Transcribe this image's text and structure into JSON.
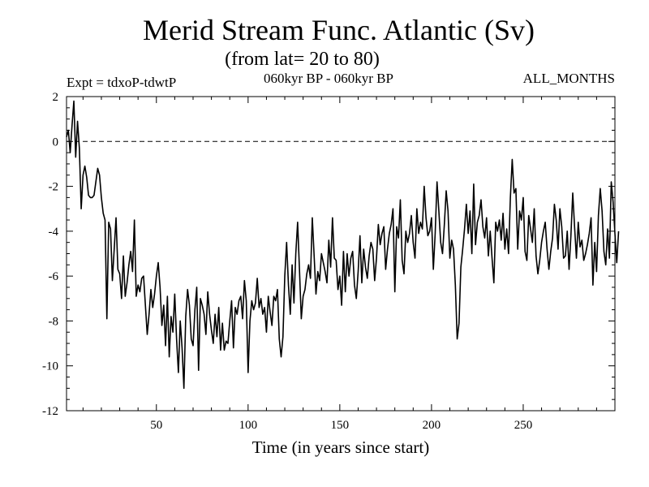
{
  "chart_data": {
    "type": "line",
    "title": "Merid Stream Func. Atlantic (Sv)",
    "subtitle": "(from lat= 20 to 80)",
    "annotations": {
      "experiment": "Expt = tdxoP-tdwtP",
      "period": "060kyr BP - 060kyr BP",
      "months": "ALL_MONTHS"
    },
    "xlabel": "Time (in years since start)",
    "ylabel": "",
    "xlim": [
      1,
      300
    ],
    "ylim": [
      -12,
      2
    ],
    "xticks": [
      50,
      100,
      150,
      200,
      250
    ],
    "xtick_labels": [
      "50",
      "100",
      "150",
      "200",
      "250"
    ],
    "yticks": [
      2,
      0,
      -2,
      -4,
      -6,
      -8,
      -10,
      -12
    ],
    "ytick_labels": [
      "2",
      "0",
      "-2",
      "-4",
      "-6",
      "-8",
      "-10",
      "-12"
    ],
    "reference_line": {
      "y": 0,
      "style": "dashed"
    },
    "grid": false,
    "series": [
      {
        "x_start": 1,
        "x_step": 1,
        "values": [
          0.2,
          0.5,
          -0.5,
          0.7,
          1.8,
          -0.7,
          0.9,
          -0.3,
          -3.0,
          -1.5,
          -1.1,
          -1.6,
          -2.4,
          -2.5,
          -2.5,
          -2.4,
          -1.8,
          -1.2,
          -1.5,
          -2.5,
          -3.2,
          -3.5,
          -7.9,
          -3.6,
          -3.9,
          -6.2,
          -4.8,
          -3.4,
          -5.7,
          -5.9,
          -7.0,
          -5.1,
          -6.9,
          -6.3,
          -5.5,
          -4.9,
          -5.8,
          -3.5,
          -6.9,
          -6.4,
          -6.7,
          -6.1,
          -6.0,
          -7.3,
          -8.6,
          -7.7,
          -6.6,
          -7.4,
          -6.8,
          -6.0,
          -5.4,
          -6.5,
          -8.2,
          -7.3,
          -9.1,
          -6.9,
          -9.6,
          -7.8,
          -8.5,
          -6.8,
          -8.8,
          -10.3,
          -8.0,
          -9.2,
          -11.0,
          -7.8,
          -6.6,
          -7.3,
          -8.8,
          -9.1,
          -7.5,
          -6.5,
          -10.2,
          -7.0,
          -7.3,
          -7.7,
          -8.6,
          -6.7,
          -7.7,
          -8.4,
          -9.0,
          -7.7,
          -8.7,
          -7.4,
          -9.3,
          -8.1,
          -9.3,
          -8.9,
          -9.0,
          -8.0,
          -7.1,
          -9.2,
          -7.4,
          -7.7,
          -7.1,
          -6.9,
          -7.9,
          -6.2,
          -7.1,
          -10.3,
          -8.0,
          -7.1,
          -7.5,
          -7.2,
          -6.1,
          -7.4,
          -7.0,
          -7.7,
          -7.4,
          -8.5,
          -6.9,
          -7.6,
          -8.2,
          -6.9,
          -7.1,
          -6.6,
          -8.8,
          -9.6,
          -8.7,
          -6.0,
          -4.5,
          -6.4,
          -7.7,
          -5.5,
          -7.2,
          -5.0,
          -3.6,
          -5.7,
          -7.9,
          -6.9,
          -6.6,
          -5.9,
          -5.5,
          -6.1,
          -3.4,
          -5.1,
          -6.8,
          -5.8,
          -6.2,
          -5.0,
          -5.4,
          -5.8,
          -6.3,
          -4.4,
          -5.6,
          -3.4,
          -5.2,
          -5.3,
          -6.6,
          -6.0,
          -7.3,
          -4.9,
          -6.7,
          -5.0,
          -6.0,
          -5.2,
          -4.9,
          -6.4,
          -7.0,
          -5.8,
          -4.2,
          -6.3,
          -4.8,
          -5.6,
          -6.1,
          -5.1,
          -4.5,
          -4.8,
          -6.2,
          -5.2,
          -3.7,
          -4.6,
          -4.1,
          -3.8,
          -5.7,
          -4.8,
          -4.1,
          -3.7,
          -3.0,
          -6.7,
          -3.8,
          -4.3,
          -2.6,
          -5.3,
          -5.9,
          -4.0,
          -4.5,
          -4.1,
          -3.3,
          -4.5,
          -5.2,
          -3.0,
          -4.1,
          -3.6,
          -3.9,
          -2.0,
          -3.4,
          -4.2,
          -4.0,
          -3.4,
          -5.7,
          -4.1,
          -1.8,
          -3.1,
          -4.5,
          -5.0,
          -3.7,
          -2.2,
          -3.1,
          -5.2,
          -4.4,
          -4.8,
          -6.4,
          -8.8,
          -8.1,
          -5.6,
          -4.8,
          -3.9,
          -2.8,
          -4.1,
          -3.1,
          -5.0,
          -1.9,
          -4.6,
          -3.6,
          -3.3,
          -2.6,
          -3.8,
          -4.3,
          -3.4,
          -5.1,
          -4.0,
          -5.2,
          -6.3,
          -3.6,
          -4.0,
          -3.5,
          -4.4,
          -3.2,
          -4.8,
          -3.9,
          -5.0,
          -2.5,
          -0.8,
          -2.3,
          -2.1,
          -4.8,
          -3.1,
          -3.5,
          -2.5,
          -4.9,
          -5.3,
          -3.3,
          -3.9,
          -4.5,
          -3.0,
          -5.1,
          -5.9,
          -5.3,
          -4.5,
          -4.0,
          -3.6,
          -4.8,
          -5.7,
          -4.9,
          -4.3,
          -2.8,
          -3.5,
          -4.8,
          -3.0,
          -3.8,
          -5.2,
          -5.1,
          -4.0,
          -5.7,
          -4.2,
          -2.3,
          -3.8,
          -5.2,
          -3.6,
          -4.7,
          -4.4,
          -5.3,
          -5.0,
          -4.6,
          -4.1,
          -3.4,
          -6.4,
          -4.5,
          -5.8,
          -3.3,
          -2.1,
          -3.1,
          -4.9,
          -5.5,
          -3.9,
          -5.2,
          -1.8,
          -2.7,
          -4.1,
          -5.4,
          -4.0
        ]
      }
    ]
  }
}
